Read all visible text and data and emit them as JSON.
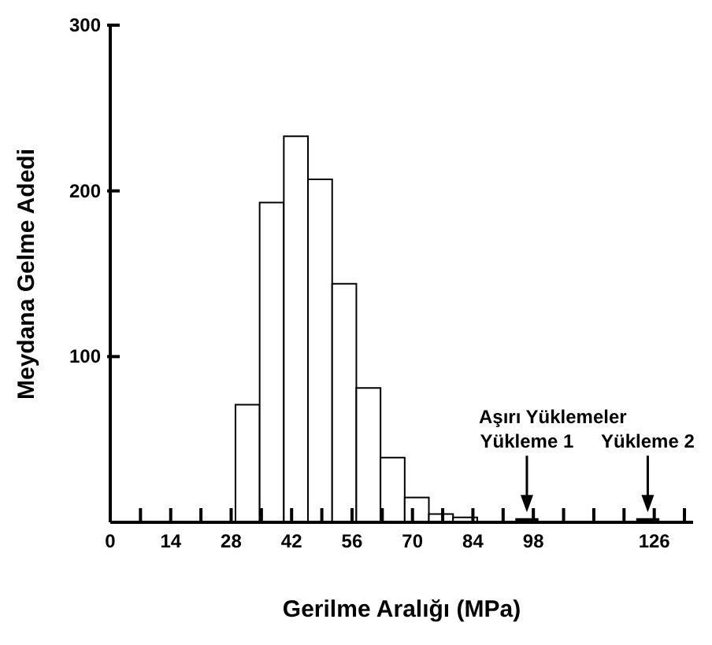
{
  "chart_data": {
    "type": "histogram",
    "xlabel": "Gerilme Aralığı (MPa)",
    "ylabel": "Meydana Gelme Adedi",
    "bins": [
      29,
      34.6,
      40.2,
      45.8,
      51.4,
      57,
      62.6,
      68.2,
      73.8,
      79.4,
      85,
      94,
      99,
      122,
      127
    ],
    "values": [
      71,
      193,
      233,
      207,
      144,
      81,
      39,
      15,
      5,
      3,
      0,
      2,
      0,
      2
    ],
    "colors": [
      "#ffffff",
      "#ffffff",
      "#ffffff",
      "#ffffff",
      "#ffffff",
      "#ffffff",
      "#ffffff",
      "#ffffff",
      "#ffffff",
      "#ffffff",
      "#ffffff",
      "#000000",
      "#ffffff",
      "#000000"
    ],
    "xlim": [
      0,
      135
    ],
    "xticks": [
      0,
      {
        "value": 7,
        "label": null
      },
      14,
      {
        "value": 21,
        "label": null
      },
      28,
      {
        "value": 35,
        "label": null
      },
      42,
      {
        "value": 49,
        "label": null
      },
      56,
      {
        "value": 63,
        "label": null
      },
      70,
      {
        "value": 77,
        "label": null
      },
      84,
      {
        "value": 91,
        "label": null
      },
      98,
      {
        "value": 105,
        "label": null
      },
      {
        "value": 112,
        "label": null
      },
      {
        "value": 119,
        "label": null
      },
      126,
      {
        "value": 133,
        "label": null
      }
    ],
    "ylim": [
      0,
      300
    ],
    "yticks": [
      100,
      200,
      300
    ],
    "annotations": [
      "Aşırı Yüklemeler",
      {
        "text": "Yükleme 1",
        "x": 96.5,
        "y": 6
      },
      {
        "text": "Yükleme 2",
        "x": 124.5,
        "y": 6
      }
    ]
  }
}
